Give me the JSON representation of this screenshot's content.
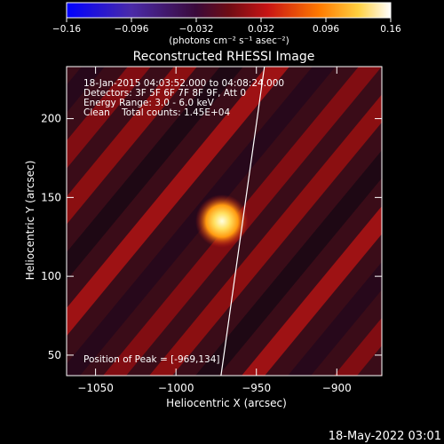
{
  "colorbar": {
    "ticks": [
      "-0.16",
      "-0.096",
      "-0.032",
      "0.032",
      "0.096",
      "0.16"
    ],
    "unit_label": "(photons cm⁻² s⁻¹ asec⁻²)"
  },
  "title": "Reconstructed RHESSI Image",
  "info": {
    "line1": "18-Jan-2015 04:03:52.000 to 04:08:24.000",
    "line2": "Detectors: 3F 5F 6F 7F 8F 9F, Att 0",
    "line3": "Energy Range: 3.0 - 6.0 keV",
    "line4": "Clean    Total counts: 1.45E+04",
    "peak": "Position of Peak = [-969,134]"
  },
  "timestamp": "18-May-2022 03:01",
  "chart_data": {
    "type": "heatmap",
    "title": "Reconstructed RHESSI Image",
    "xlabel": "Heliocentric X (arcsec)",
    "ylabel": "Heliocentric Y (arcsec)",
    "xlim": [
      -1068,
      -872
    ],
    "ylim": [
      37,
      233
    ],
    "xticks": [
      -1050,
      -1000,
      -950,
      -900
    ],
    "yticks": [
      50,
      100,
      150,
      200
    ],
    "xtick_labels": [
      "−1050",
      "−1000",
      "−950",
      "−900"
    ],
    "ytick_labels": [
      "50",
      "100",
      "150",
      "200"
    ],
    "colorbar_range": [
      -0.16,
      0.16
    ],
    "peak": {
      "x": -969,
      "y": 134
    },
    "limb_line": {
      "x": [
        -972,
        -945
      ],
      "y": [
        37,
        233
      ]
    },
    "colormap": [
      "#0000ff",
      "#5a1ca8",
      "#2a0a2a",
      "#c81414",
      "#ff8c00",
      "#ffffa0",
      "#ffffff"
    ]
  }
}
